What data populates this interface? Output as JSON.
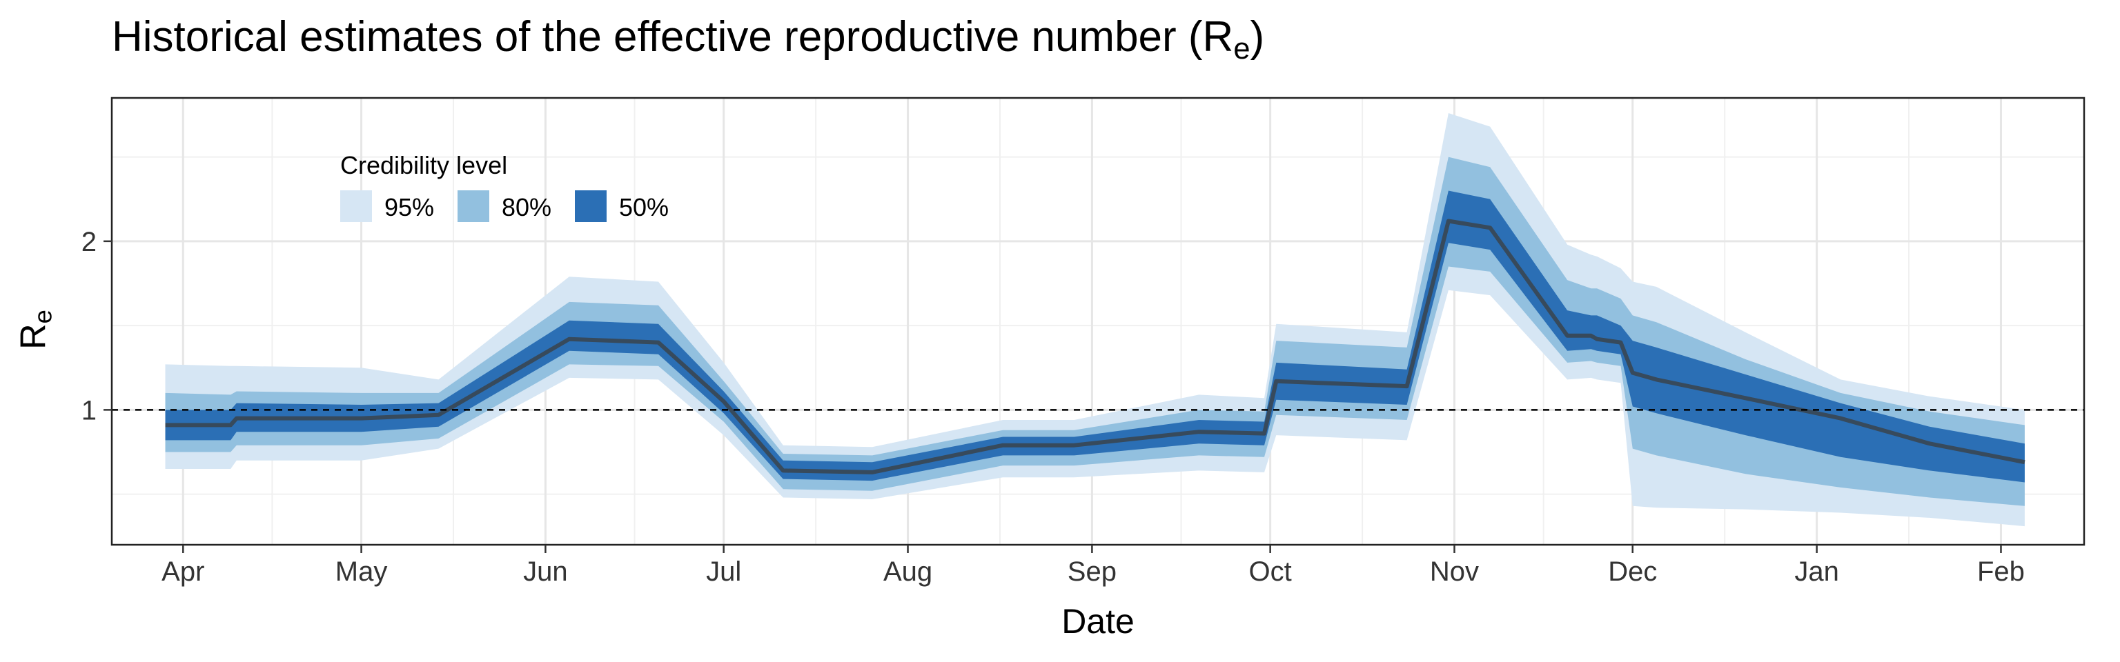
{
  "title_main": "Historical estimates of the effective reproductive number (R",
  "title_sub": "e",
  "title_close": ")",
  "chart_data": {
    "type": "area",
    "title": "Historical estimates of the effective reproductive number (Re)",
    "xlabel": "Date",
    "ylabel": "Re",
    "ylabel_main": "R",
    "ylabel_sub": "e",
    "xlim": [
      "2020-03-20",
      "2021-02-15"
    ],
    "ylim": [
      0.2,
      2.85
    ],
    "x_ticks": [
      "2020-04-01",
      "2020-05-01",
      "2020-06-01",
      "2020-07-01",
      "2020-08-01",
      "2020-09-01",
      "2020-10-01",
      "2020-11-01",
      "2020-12-01",
      "2021-01-01",
      "2021-02-01"
    ],
    "x_tick_labels": [
      "Apr",
      "May",
      "Jun",
      "Jul",
      "Aug",
      "Sep",
      "Oct",
      "Nov",
      "Dec",
      "Jan",
      "Feb"
    ],
    "y_ticks": [
      1,
      2
    ],
    "y_tick_labels": [
      "1",
      "2"
    ],
    "reference_line": 1,
    "grid": true,
    "legend": {
      "title": "Credibility level",
      "position": "top-left (inside)",
      "items": [
        {
          "label": "95%",
          "color": "#d6e6f4"
        },
        {
          "label": "80%",
          "color": "#92c0df"
        },
        {
          "label": "50%",
          "color": "#2b6fb5"
        }
      ]
    },
    "median_color": "#374a5c",
    "dates": [
      "2020-03-29",
      "2020-04-09",
      "2020-04-10",
      "2020-05-01",
      "2020-05-14",
      "2020-06-05",
      "2020-06-20",
      "2020-07-01",
      "2020-07-11",
      "2020-07-26",
      "2020-08-17",
      "2020-08-29",
      "2020-09-19",
      "2020-09-30",
      "2020-10-02",
      "2020-10-24",
      "2020-10-31",
      "2020-11-07",
      "2020-11-20",
      "2020-11-24",
      "2020-11-25",
      "2020-11-29",
      "2020-12-01",
      "2020-12-05",
      "2020-12-20",
      "2021-01-05",
      "2021-01-20",
      "2021-02-05"
    ],
    "median": [
      0.91,
      0.91,
      0.95,
      0.95,
      0.97,
      1.42,
      1.4,
      1.05,
      0.64,
      0.63,
      0.79,
      0.79,
      0.87,
      0.86,
      1.17,
      1.14,
      2.12,
      2.08,
      1.44,
      1.44,
      1.42,
      1.4,
      1.22,
      1.18,
      1.07,
      0.95,
      0.8,
      0.69
    ],
    "series": [
      {
        "name": "95%",
        "lower": [
          0.65,
          0.65,
          0.7,
          0.7,
          0.77,
          1.19,
          1.18,
          0.85,
          0.48,
          0.47,
          0.6,
          0.6,
          0.64,
          0.63,
          0.85,
          0.82,
          1.71,
          1.68,
          1.18,
          1.19,
          1.18,
          1.16,
          0.43,
          0.42,
          0.41,
          0.39,
          0.36,
          0.31
        ],
        "upper": [
          1.27,
          1.26,
          1.26,
          1.25,
          1.18,
          1.79,
          1.76,
          1.28,
          0.79,
          0.78,
          0.94,
          0.94,
          1.09,
          1.07,
          1.51,
          1.46,
          2.76,
          2.68,
          1.98,
          1.92,
          1.91,
          1.84,
          1.76,
          1.73,
          1.46,
          1.18,
          1.08,
          1.0
        ]
      },
      {
        "name": "80%",
        "lower": [
          0.75,
          0.75,
          0.79,
          0.79,
          0.83,
          1.27,
          1.26,
          0.93,
          0.53,
          0.52,
          0.67,
          0.67,
          0.73,
          0.72,
          0.97,
          0.94,
          1.85,
          1.82,
          1.28,
          1.29,
          1.28,
          1.26,
          0.77,
          0.73,
          0.62,
          0.54,
          0.48,
          0.43
        ],
        "upper": [
          1.1,
          1.09,
          1.11,
          1.1,
          1.1,
          1.64,
          1.62,
          1.17,
          0.74,
          0.73,
          0.88,
          0.88,
          1.0,
          0.99,
          1.41,
          1.37,
          2.5,
          2.44,
          1.77,
          1.72,
          1.72,
          1.66,
          1.56,
          1.52,
          1.3,
          1.1,
          0.99,
          0.91
        ]
      },
      {
        "name": "50%",
        "lower": [
          0.82,
          0.82,
          0.87,
          0.87,
          0.9,
          1.35,
          1.33,
          0.98,
          0.59,
          0.58,
          0.73,
          0.73,
          0.8,
          0.79,
          1.06,
          1.03,
          1.99,
          1.95,
          1.35,
          1.36,
          1.35,
          1.33,
          1.02,
          0.98,
          0.85,
          0.72,
          0.64,
          0.57
        ],
        "upper": [
          1.0,
          1.0,
          1.04,
          1.03,
          1.04,
          1.53,
          1.51,
          1.11,
          0.7,
          0.69,
          0.84,
          0.84,
          0.94,
          0.93,
          1.28,
          1.24,
          2.3,
          2.25,
          1.59,
          1.56,
          1.56,
          1.5,
          1.41,
          1.37,
          1.21,
          1.04,
          0.9,
          0.8
        ]
      }
    ]
  }
}
